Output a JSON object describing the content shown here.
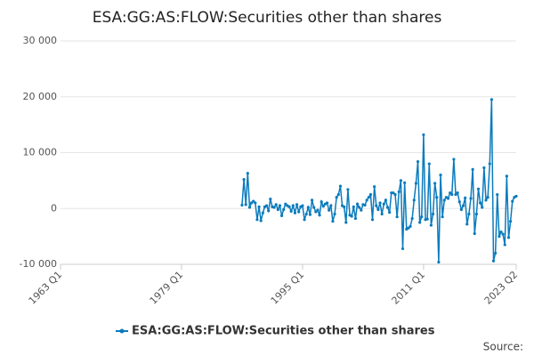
{
  "chart_data": {
    "type": "line",
    "title": "ESA:GG:AS:FLOW:Securities other than shares",
    "source": "Source:",
    "xlim": [
      "1963 Q1",
      "2023 Q2"
    ],
    "xticks": [
      "1963 Q1",
      "1979 Q1",
      "1995 Q1",
      "2011 Q1",
      "2023 Q2"
    ],
    "ylim": [
      -10000,
      30000
    ],
    "yticks": [
      {
        "value": -10000,
        "label": "-10 000"
      },
      0,
      {
        "value": 10000,
        "label": "10 000"
      },
      {
        "value": 20000,
        "label": "20 000"
      },
      {
        "value": 30000,
        "label": "30 000"
      }
    ],
    "grid": true,
    "legend": "bottom",
    "x": [
      "1987 Q1",
      "1987 Q2",
      "1987 Q3",
      "1987 Q4",
      "1988 Q1",
      "1988 Q2",
      "1988 Q3",
      "1988 Q4",
      "1989 Q1",
      "1989 Q2",
      "1989 Q3",
      "1989 Q4",
      "1990 Q1",
      "1990 Q2",
      "1990 Q3",
      "1990 Q4",
      "1991 Q1",
      "1991 Q2",
      "1991 Q3",
      "1991 Q4",
      "1992 Q1",
      "1992 Q2",
      "1992 Q3",
      "1992 Q4",
      "1993 Q1",
      "1993 Q2",
      "1993 Q3",
      "1993 Q4",
      "1994 Q1",
      "1994 Q2",
      "1994 Q3",
      "1994 Q4",
      "1995 Q1",
      "1995 Q2",
      "1995 Q3",
      "1995 Q4",
      "1996 Q1",
      "1996 Q2",
      "1996 Q3",
      "1996 Q4",
      "1997 Q1",
      "1997 Q2",
      "1997 Q3",
      "1997 Q4",
      "1998 Q1",
      "1998 Q2",
      "1998 Q3",
      "1998 Q4",
      "1999 Q1",
      "1999 Q2",
      "1999 Q3",
      "1999 Q4",
      "2000 Q1",
      "2000 Q2",
      "2000 Q3",
      "2000 Q4",
      "2001 Q1",
      "2001 Q2",
      "2001 Q3",
      "2001 Q4",
      "2002 Q1",
      "2002 Q2",
      "2002 Q3",
      "2002 Q4",
      "2003 Q1",
      "2003 Q2",
      "2003 Q3",
      "2003 Q4",
      "2004 Q1",
      "2004 Q2",
      "2004 Q3",
      "2004 Q4",
      "2005 Q1",
      "2005 Q2",
      "2005 Q3",
      "2005 Q4",
      "2006 Q1",
      "2006 Q2",
      "2006 Q3",
      "2006 Q4",
      "2007 Q1",
      "2007 Q2",
      "2007 Q3",
      "2007 Q4",
      "2008 Q1",
      "2008 Q2",
      "2008 Q3",
      "2008 Q4",
      "2009 Q1",
      "2009 Q2",
      "2009 Q3",
      "2009 Q4",
      "2010 Q1",
      "2010 Q2",
      "2010 Q3",
      "2010 Q4",
      "2011 Q1",
      "2011 Q2",
      "2011 Q3",
      "2011 Q4",
      "2012 Q1",
      "2012 Q2",
      "2012 Q3",
      "2012 Q4",
      "2013 Q1",
      "2013 Q2",
      "2013 Q3",
      "2013 Q4",
      "2014 Q1",
      "2014 Q2",
      "2014 Q3",
      "2014 Q4",
      "2015 Q1",
      "2015 Q2",
      "2015 Q3",
      "2015 Q4",
      "2016 Q1",
      "2016 Q2",
      "2016 Q3",
      "2016 Q4",
      "2017 Q1",
      "2017 Q2",
      "2017 Q3",
      "2017 Q4",
      "2018 Q1",
      "2018 Q2",
      "2018 Q3",
      "2018 Q4",
      "2019 Q1",
      "2019 Q2",
      "2019 Q3",
      "2019 Q4",
      "2020 Q1",
      "2020 Q2",
      "2020 Q3",
      "2020 Q4",
      "2021 Q1",
      "2021 Q2",
      "2021 Q3",
      "2021 Q4",
      "2022 Q1",
      "2022 Q2",
      "2022 Q3",
      "2022 Q4",
      "2023 Q1",
      "2023 Q2"
    ],
    "series": [
      {
        "name": "ESA:GG:AS:FLOW:Securities other than shares",
        "color": "#0a7bbd",
        "values": [
          600,
          5200,
          700,
          6300,
          200,
          1000,
          1300,
          1000,
          -2000,
          300,
          -2200,
          -800,
          300,
          500,
          -400,
          1700,
          300,
          200,
          700,
          -200,
          500,
          -1300,
          -200,
          800,
          500,
          300,
          -500,
          500,
          -800,
          700,
          -600,
          300,
          500,
          -2000,
          -1000,
          200,
          -1100,
          1500,
          200,
          -600,
          -300,
          -1200,
          1200,
          400,
          800,
          1000,
          -300,
          500,
          -2300,
          -1000,
          2000,
          2500,
          4000,
          500,
          300,
          -2500,
          3400,
          -1200,
          -1400,
          300,
          -1800,
          800,
          200,
          -300,
          700,
          600,
          1500,
          2000,
          2500,
          -2000,
          3900,
          500,
          -200,
          1000,
          -1000,
          800,
          1500,
          200,
          -700,
          2800,
          2800,
          2500,
          -1500,
          3000,
          5000,
          -7200,
          4600,
          -3700,
          -3500,
          -3200,
          -1800,
          1500,
          4500,
          8400,
          -2500,
          -1500,
          13200,
          -2000,
          -1900,
          8000,
          -3000,
          -1000,
          4500,
          2000,
          -9600,
          6000,
          -1500,
          1500,
          2000,
          1800,
          2800,
          2500,
          8800,
          2500,
          2800,
          1200,
          -200,
          500,
          1900,
          -2800,
          -1000,
          1800,
          7000,
          -4500,
          -1000,
          3500,
          1000,
          200,
          7300,
          1500,
          2000,
          8000,
          19500,
          -9400,
          -8000,
          2500,
          -5000,
          -4200,
          -4600,
          -6500,
          5800,
          -5200,
          -2300,
          1300,
          2000,
          2200
        ]
      }
    ]
  }
}
